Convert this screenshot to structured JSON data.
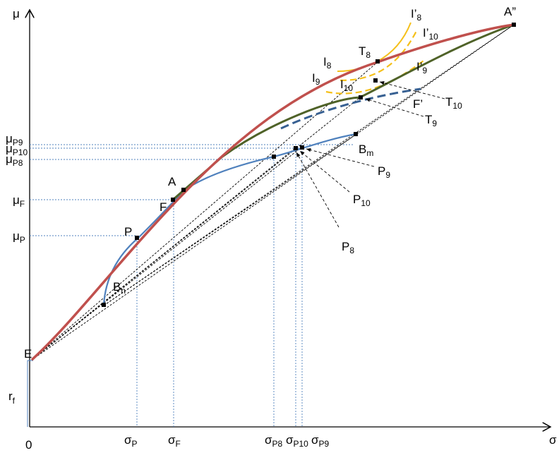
{
  "axes": {
    "y_label": "μ",
    "x_label": "σ",
    "origin_label": "0"
  },
  "y_ticks": {
    "mu_p9": {
      "base": "μ",
      "sub": "P9"
    },
    "mu_p10": {
      "base": "μ",
      "sub": "P10"
    },
    "mu_p8": {
      "base": "μ",
      "sub": "P8"
    },
    "mu_f": {
      "base": "μ",
      "sub": "F"
    },
    "mu_p": {
      "base": "μ",
      "sub": "P"
    },
    "r_f": {
      "base": "r",
      "sub": "f"
    }
  },
  "x_ticks": {
    "sigma_p": {
      "base": "σ",
      "sub": "P"
    },
    "sigma_f": {
      "base": "σ",
      "sub": "F"
    },
    "sigma_p8": {
      "base": "σ",
      "sub": "P8"
    },
    "sigma_p10": {
      "base": "σ",
      "sub": "P10"
    },
    "sigma_p9": {
      "base": "σ",
      "sub": "P9"
    }
  },
  "points": {
    "E": "E",
    "A": "A",
    "F": "F",
    "P": "P",
    "A2": "A”",
    "T8": {
      "base": "T",
      "sub": "8"
    },
    "I8": {
      "base": "I",
      "sub": "8"
    },
    "I8p": {
      "base": "I’",
      "sub": "8"
    },
    "I10p": {
      "base": "I’",
      "sub": "10"
    },
    "I9p": {
      "base": "I’",
      "sub": "9"
    },
    "I9": {
      "base": "I",
      "sub": "9"
    },
    "I10": {
      "base": "I",
      "sub": "10"
    },
    "Fp": "F’",
    "T10": {
      "base": "T",
      "sub": "10"
    },
    "T9": {
      "base": "T",
      "sub": "9"
    },
    "Bm": {
      "base": "B",
      "sub": "m"
    },
    "Bn": {
      "base": "B",
      "sub": "n"
    },
    "P9": {
      "base": "P",
      "sub": "9"
    },
    "P10": {
      "base": "P",
      "sub": "10"
    },
    "P8": {
      "base": "P",
      "sub": "8"
    }
  },
  "colors": {
    "red_frontier": "#c0504d",
    "green_frontier": "#4f6228",
    "blue_frontier": "#4f81bd",
    "blue_dashed": "#376092",
    "yellow_indiff": "#f5c01b",
    "guide_lines": "#4f81bd",
    "axis": "#000000"
  }
}
